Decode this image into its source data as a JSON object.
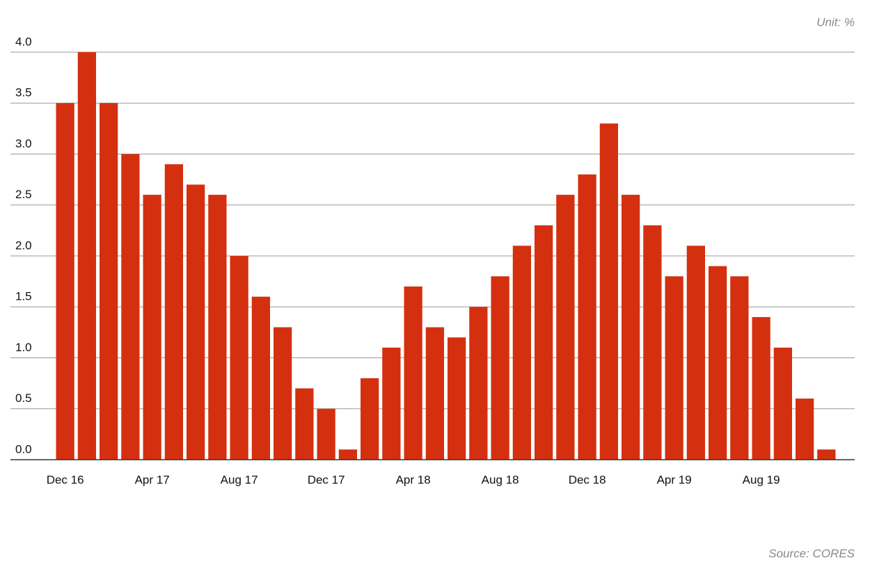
{
  "chart_data": {
    "type": "bar",
    "unit_note": "Unit: %",
    "source": "Source: CORES",
    "categories": [
      "Dec 16",
      null,
      null,
      null,
      "Apr 17",
      null,
      null,
      null,
      "Aug 17",
      null,
      null,
      null,
      "Dec 17",
      null,
      null,
      null,
      "Apr 18",
      null,
      null,
      null,
      "Aug 18",
      null,
      null,
      null,
      "Dec 18",
      null,
      null,
      null,
      "Apr 19",
      null,
      null,
      null,
      "Aug 19",
      null,
      null,
      null
    ],
    "values": [
      3.5,
      4.0,
      3.5,
      3.0,
      2.6,
      2.9,
      2.7,
      2.6,
      2.0,
      1.6,
      1.3,
      0.7,
      0.5,
      0.1,
      0.8,
      1.1,
      1.7,
      1.3,
      1.2,
      1.5,
      1.8,
      2.1,
      2.3,
      2.6,
      2.8,
      3.3,
      2.6,
      2.3,
      1.8,
      2.1,
      1.9,
      1.8,
      1.4,
      1.1,
      0.6,
      0.1
    ],
    "color": "#d43010",
    "ylim": [
      0,
      4
    ],
    "yticks": [
      {
        "value": 0,
        "label": "0.0"
      },
      {
        "value": 0.5,
        "label": "0.5"
      },
      {
        "value": 1,
        "label": "1.0"
      },
      {
        "value": 1.5,
        "label": "1.5"
      },
      {
        "value": 2,
        "label": "2.0"
      },
      {
        "value": 2.5,
        "label": "2.5"
      },
      {
        "value": 3,
        "label": "3.0"
      },
      {
        "value": 3.5,
        "label": "3.5"
      },
      {
        "value": 4,
        "label": "4.0"
      }
    ],
    "grid": true
  }
}
